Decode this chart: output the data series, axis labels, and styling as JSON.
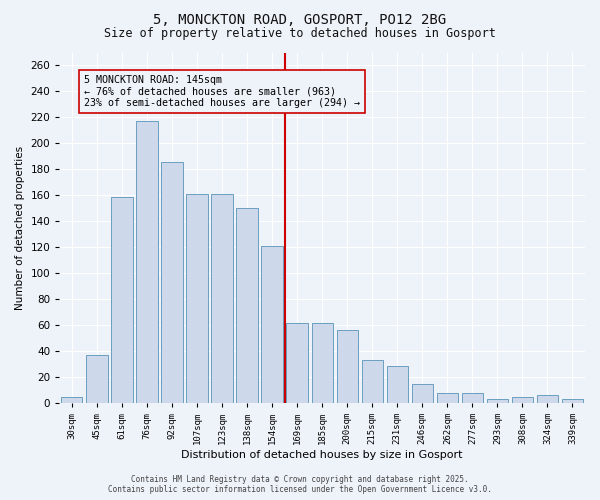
{
  "title_line1": "5, MONCKTON ROAD, GOSPORT, PO12 2BG",
  "title_line2": "Size of property relative to detached houses in Gosport",
  "xlabel": "Distribution of detached houses by size in Gosport",
  "ylabel": "Number of detached properties",
  "bar_color": "#cdd9ea",
  "bar_edge_color": "#6a9ec0",
  "categories": [
    "30sqm",
    "45sqm",
    "61sqm",
    "76sqm",
    "92sqm",
    "107sqm",
    "123sqm",
    "138sqm",
    "154sqm",
    "169sqm",
    "185sqm",
    "200sqm",
    "215sqm",
    "231sqm",
    "246sqm",
    "262sqm",
    "277sqm",
    "293sqm",
    "308sqm",
    "324sqm",
    "339sqm"
  ],
  "values": [
    5,
    37,
    159,
    217,
    186,
    161,
    161,
    150,
    121,
    62,
    62,
    56,
    33,
    29,
    15,
    8,
    8,
    3,
    5,
    6,
    3
  ],
  "ylim": [
    0,
    270
  ],
  "yticks": [
    0,
    20,
    40,
    60,
    80,
    100,
    120,
    140,
    160,
    180,
    200,
    220,
    240,
    260
  ],
  "vline_index": 8.5,
  "vline_color": "#cc0000",
  "annotation_title": "5 MONCKTON ROAD: 145sqm",
  "annotation_line1": "← 76% of detached houses are smaller (963)",
  "annotation_line2": "23% of semi-detached houses are larger (294) →",
  "annotation_box_color": "#cc0000",
  "footer_line1": "Contains HM Land Registry data © Crown copyright and database right 2025.",
  "footer_line2": "Contains public sector information licensed under the Open Government Licence v3.0.",
  "background_color": "#eef2f9",
  "grid_color": "#ffffff"
}
